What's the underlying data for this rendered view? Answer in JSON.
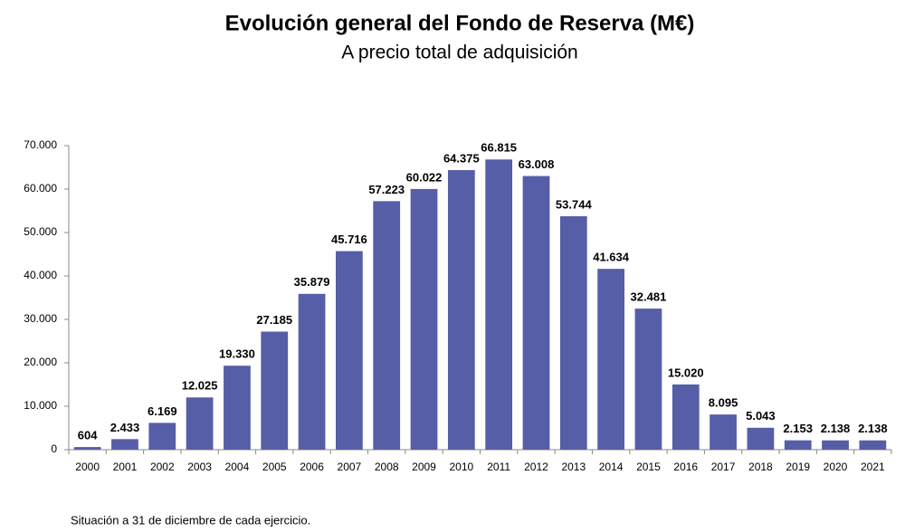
{
  "chart_data": {
    "type": "bar",
    "title": "Evolución general del Fondo de Reserva (M€)",
    "subtitle": "A precio total de adquisición",
    "note": "Situación a 31 de diciembre de cada ejercicio.",
    "categories": [
      "2000",
      "2001",
      "2002",
      "2003",
      "2004",
      "2005",
      "2006",
      "2007",
      "2008",
      "2009",
      "2010",
      "2011",
      "2012",
      "2013",
      "2014",
      "2015",
      "2016",
      "2017",
      "2018",
      "2019",
      "2020",
      "2021"
    ],
    "values": [
      604,
      2433,
      6169,
      12025,
      19330,
      27185,
      35879,
      45716,
      57223,
      60022,
      64375,
      66815,
      63008,
      53744,
      41634,
      32481,
      15020,
      8095,
      5043,
      2153,
      2138,
      2138
    ],
    "value_labels": [
      "604",
      "2.433",
      "6.169",
      "12.025",
      "19.330",
      "27.185",
      "35.879",
      "45.716",
      "57.223",
      "60.022",
      "64.375",
      "66.815",
      "63.008",
      "53.744",
      "41.634",
      "32.481",
      "15.020",
      "8.095",
      "5.043",
      "2.153",
      "2.138",
      "2.138"
    ],
    "color": "#565ea8",
    "ylim": [
      0,
      70000
    ],
    "yticks": [
      0,
      {
        "value": 10000,
        "label": "10.000"
      },
      {
        "value": 20000,
        "label": "20.000"
      },
      {
        "value": 30000,
        "label": "30.000"
      },
      {
        "value": 40000,
        "label": "40.000"
      },
      {
        "value": 50000,
        "label": "50.000"
      },
      {
        "value": 60000,
        "label": "60.000"
      },
      {
        "value": 70000,
        "label": "70.000"
      }
    ],
    "grid": false
  }
}
